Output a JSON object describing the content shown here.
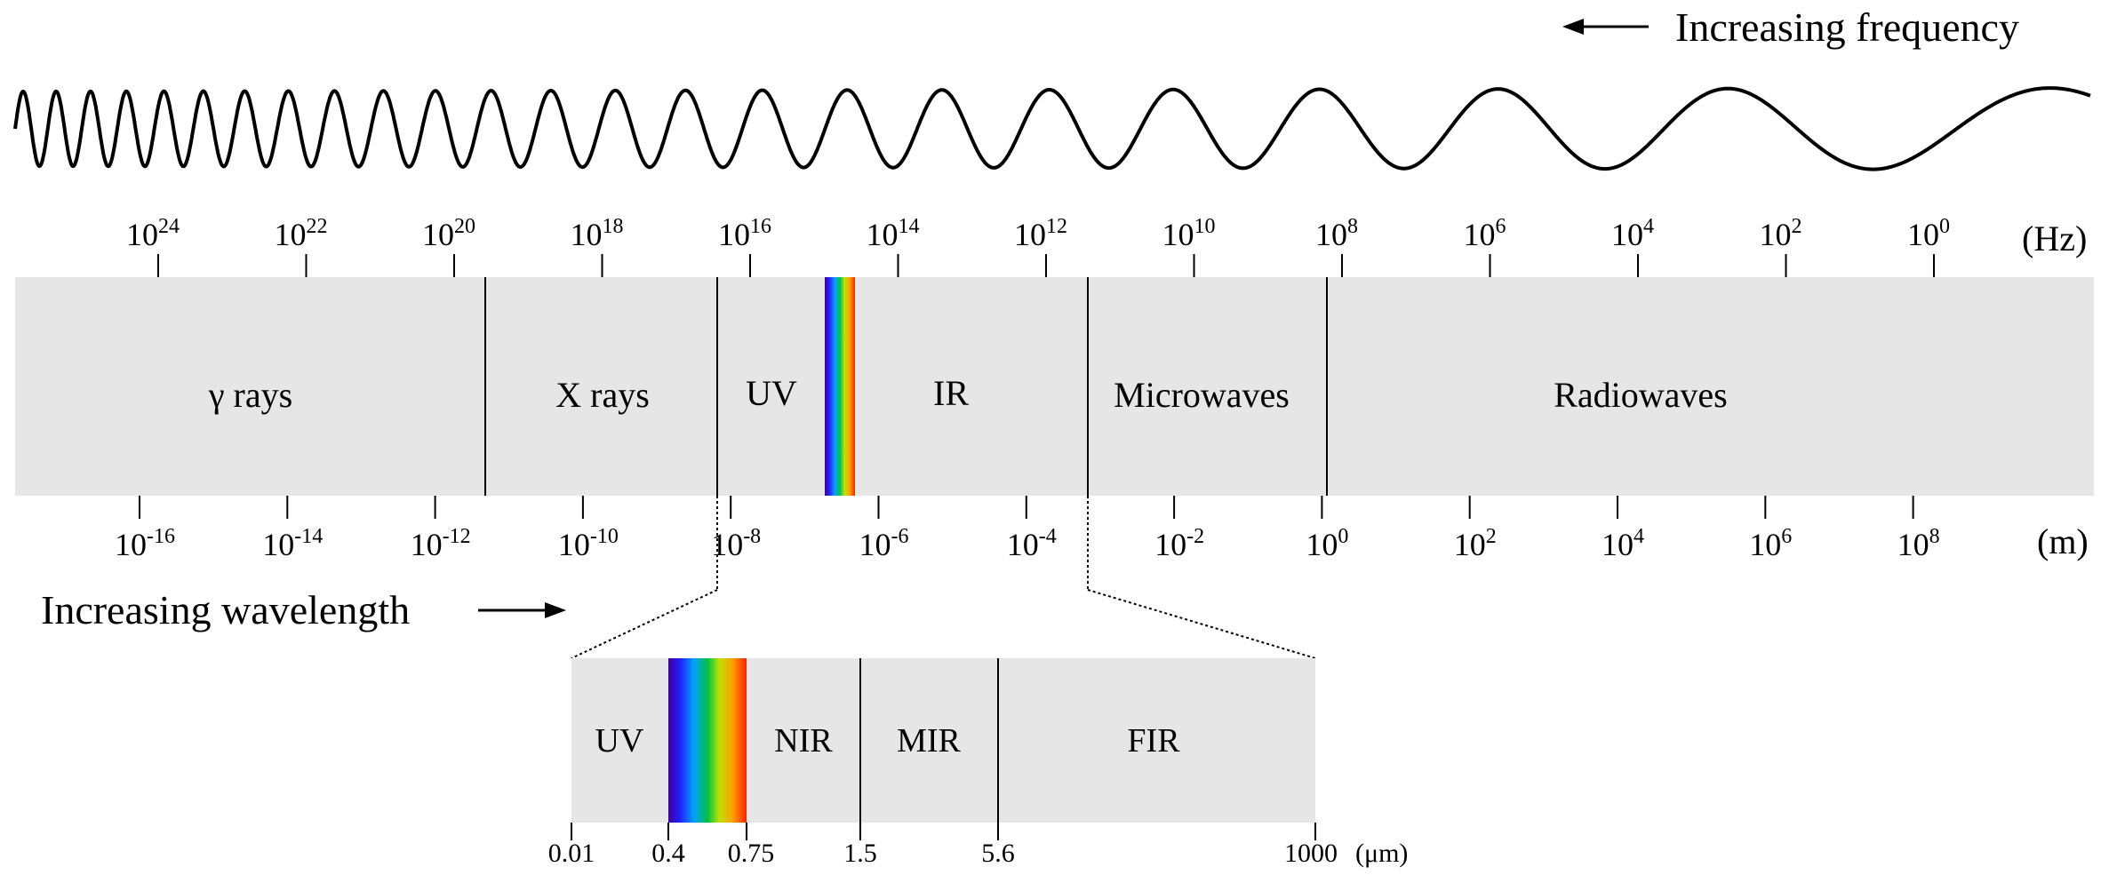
{
  "frequency_arrow_label": "Increasing frequency",
  "wavelength_arrow_label": "Increasing wavelength",
  "frequency_unit": "(Hz)",
  "wavelength_unit": "(m)",
  "frequency_exponents": [
    "24",
    "22",
    "20",
    "18",
    "16",
    "14",
    "12",
    "10",
    "8",
    "6",
    "4",
    "2",
    "0"
  ],
  "wavelength_exponents": [
    "-16",
    "-14",
    "-12",
    "-10",
    "-8",
    "-6",
    "-4",
    "-2",
    "0",
    "2",
    "4",
    "6",
    "8"
  ],
  "tick_base": "10",
  "bands": [
    "γ rays",
    "X rays",
    "UV",
    "IR",
    "Microwaves",
    "Radiowaves"
  ],
  "zoom": {
    "bands": [
      "UV",
      "NIR",
      "MIR",
      "FIR"
    ],
    "ticks": [
      "0.01",
      "0.4",
      "0.75",
      "1.5",
      "5.6",
      "1000"
    ],
    "unit": "(μm)"
  },
  "colors": {
    "band_fill": "#e6e6e6",
    "spectrum": [
      "#3c00a0",
      "#2020ff",
      "#00a0ff",
      "#00c040",
      "#c0e000",
      "#ffa000",
      "#ff2000"
    ]
  }
}
